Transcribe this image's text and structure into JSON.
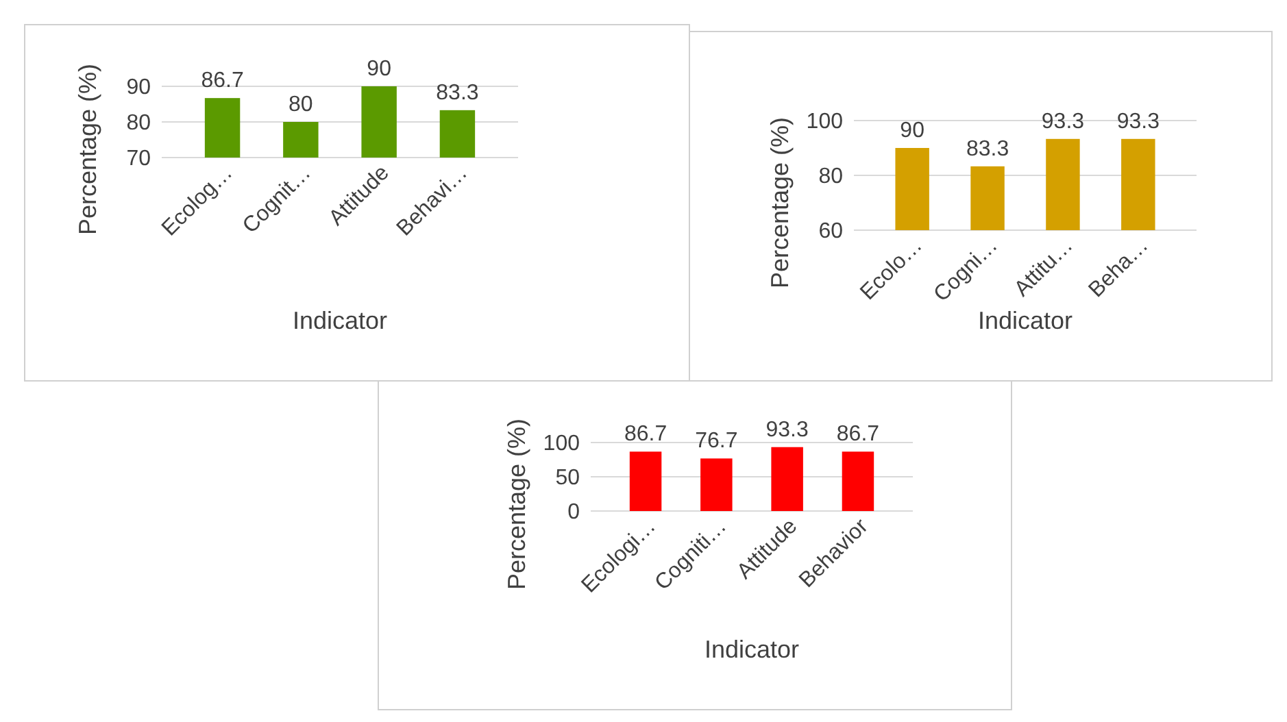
{
  "chart_data": [
    {
      "type": "bar",
      "ylabel": "Percentage (%)",
      "xlabel": "Indicator",
      "categories": [
        "Ecolog…",
        "Cognit…",
        "Attitude",
        "Behavi…"
      ],
      "values": [
        86.7,
        80,
        90,
        83.3
      ],
      "color": "#5b9a00",
      "ylim": [
        70,
        90
      ],
      "yticks": [
        70,
        80,
        90
      ],
      "grid": "y",
      "data_labels": true
    },
    {
      "type": "bar",
      "ylabel": "Percentage (%)",
      "xlabel": "Indicator",
      "categories": [
        "Ecolo…",
        "Cogni…",
        "Attitu…",
        "Beha…"
      ],
      "values": [
        90,
        83.3,
        93.3,
        93.3
      ],
      "color": "#d4a000",
      "ylim": [
        60,
        100
      ],
      "yticks": [
        60,
        80,
        100
      ],
      "grid": "y",
      "data_labels": true
    },
    {
      "type": "bar",
      "ylabel": "Percentage (%)",
      "xlabel": "Indicator",
      "categories": [
        "Ecologi…",
        "Cogniti…",
        "Attitude",
        "Behavior"
      ],
      "values": [
        86.7,
        76.7,
        93.3,
        86.7
      ],
      "color": "#ff0000",
      "ylim": [
        0,
        100
      ],
      "yticks": [
        0,
        50,
        100
      ],
      "grid": "y",
      "data_labels": true
    }
  ]
}
